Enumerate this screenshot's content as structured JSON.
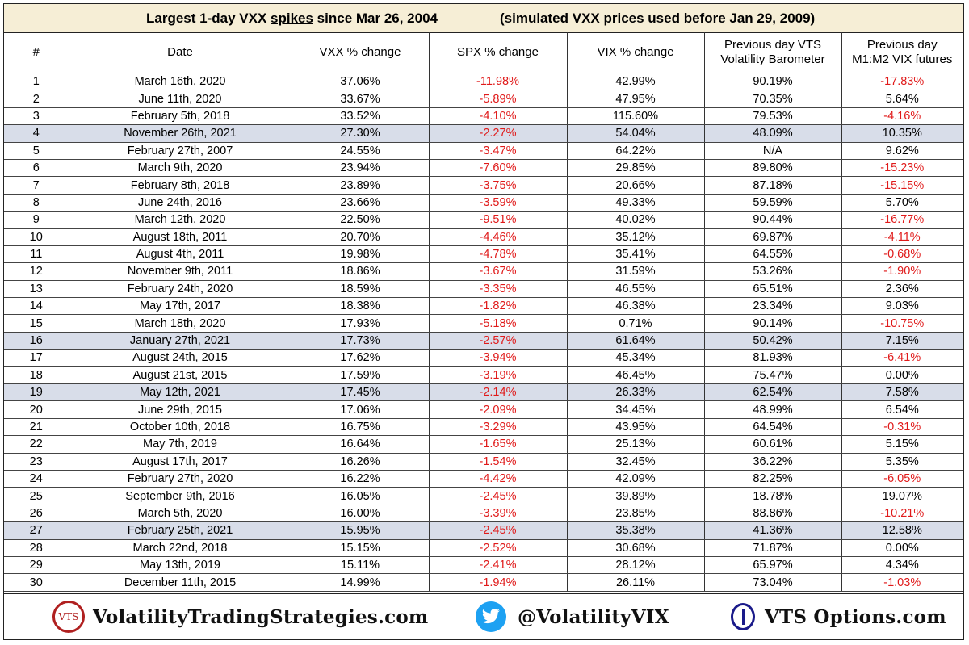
{
  "title": {
    "prefix": "Largest 1-day VXX ",
    "underlined": "spikes",
    "suffix": " since Mar 26, 2004",
    "note": "(simulated VXX prices used before Jan 29, 2009)"
  },
  "colors": {
    "negative": "#e01a1a",
    "highlight_row": "#d8dde9",
    "title_background": "#f6eed6",
    "twitter_blue": "#1da1f2"
  },
  "table": {
    "headers": [
      "#",
      "Date",
      "VXX % change",
      "SPX % change",
      "VIX % change",
      "Previous day VTS\nVolatility Barometer",
      "Previous day\nM1:M2 VIX futures"
    ],
    "highlighted_rows": [
      4,
      16,
      19,
      27
    ],
    "rows": [
      [
        "1",
        "March 16th, 2020",
        "37.06%",
        "-11.98%",
        "42.99%",
        "90.19%",
        "-17.83%"
      ],
      [
        "2",
        "June 11th, 2020",
        "33.67%",
        "-5.89%",
        "47.95%",
        "70.35%",
        "5.64%"
      ],
      [
        "3",
        "February 5th, 2018",
        "33.52%",
        "-4.10%",
        "115.60%",
        "79.53%",
        "-4.16%"
      ],
      [
        "4",
        "November 26th, 2021",
        "27.30%",
        "-2.27%",
        "54.04%",
        "48.09%",
        "10.35%"
      ],
      [
        "5",
        "February 27th, 2007",
        "24.55%",
        "-3.47%",
        "64.22%",
        "N/A",
        "9.62%"
      ],
      [
        "6",
        "March 9th, 2020",
        "23.94%",
        "-7.60%",
        "29.85%",
        "89.80%",
        "-15.23%"
      ],
      [
        "7",
        "February 8th, 2018",
        "23.89%",
        "-3.75%",
        "20.66%",
        "87.18%",
        "-15.15%"
      ],
      [
        "8",
        "June 24th, 2016",
        "23.66%",
        "-3.59%",
        "49.33%",
        "59.59%",
        "5.70%"
      ],
      [
        "9",
        "March 12th, 2020",
        "22.50%",
        "-9.51%",
        "40.02%",
        "90.44%",
        "-16.77%"
      ],
      [
        "10",
        "August 18th, 2011",
        "20.70%",
        "-4.46%",
        "35.12%",
        "69.87%",
        "-4.11%"
      ],
      [
        "11",
        "August 4th, 2011",
        "19.98%",
        "-4.78%",
        "35.41%",
        "64.55%",
        "-0.68%"
      ],
      [
        "12",
        "November 9th, 2011",
        "18.86%",
        "-3.67%",
        "31.59%",
        "53.26%",
        "-1.90%"
      ],
      [
        "13",
        "February 24th, 2020",
        "18.59%",
        "-3.35%",
        "46.55%",
        "65.51%",
        "2.36%"
      ],
      [
        "14",
        "May 17th, 2017",
        "18.38%",
        "-1.82%",
        "46.38%",
        "23.34%",
        "9.03%"
      ],
      [
        "15",
        "March 18th, 2020",
        "17.93%",
        "-5.18%",
        "0.71%",
        "90.14%",
        "-10.75%"
      ],
      [
        "16",
        "January 27th, 2021",
        "17.73%",
        "-2.57%",
        "61.64%",
        "50.42%",
        "7.15%"
      ],
      [
        "17",
        "August 24th, 2015",
        "17.62%",
        "-3.94%",
        "45.34%",
        "81.93%",
        "-6.41%"
      ],
      [
        "18",
        "August 21st, 2015",
        "17.59%",
        "-3.19%",
        "46.45%",
        "75.47%",
        "0.00%"
      ],
      [
        "19",
        "May 12th, 2021",
        "17.45%",
        "-2.14%",
        "26.33%",
        "62.54%",
        "7.58%"
      ],
      [
        "20",
        "June 29th, 2015",
        "17.06%",
        "-2.09%",
        "34.45%",
        "48.99%",
        "6.54%"
      ],
      [
        "21",
        "October 10th, 2018",
        "16.75%",
        "-3.29%",
        "43.95%",
        "64.54%",
        "-0.31%"
      ],
      [
        "22",
        "May 7th, 2019",
        "16.64%",
        "-1.65%",
        "25.13%",
        "60.61%",
        "5.15%"
      ],
      [
        "23",
        "August 17th, 2017",
        "16.26%",
        "-1.54%",
        "32.45%",
        "36.22%",
        "5.35%"
      ],
      [
        "24",
        "February 27th, 2020",
        "16.22%",
        "-4.42%",
        "42.09%",
        "82.25%",
        "-6.05%"
      ],
      [
        "25",
        "September 9th, 2016",
        "16.05%",
        "-2.45%",
        "39.89%",
        "18.78%",
        "19.07%"
      ],
      [
        "26",
        "March 5th, 2020",
        "16.00%",
        "-3.39%",
        "23.85%",
        "88.86%",
        "-10.21%"
      ],
      [
        "27",
        "February 25th, 2021",
        "15.95%",
        "-2.45%",
        "35.38%",
        "41.36%",
        "12.58%"
      ],
      [
        "28",
        "March 22nd, 2018",
        "15.15%",
        "-2.52%",
        "30.68%",
        "71.87%",
        "0.00%"
      ],
      [
        "29",
        "May 13th, 2019",
        "15.11%",
        "-2.41%",
        "28.12%",
        "65.97%",
        "4.34%"
      ],
      [
        "30",
        "December 11th, 2015",
        "14.99%",
        "-1.94%",
        "26.11%",
        "73.04%",
        "-1.03%"
      ]
    ]
  },
  "footer": {
    "vts_logo_text": "VTS",
    "vts_site": "VolatilityTradingStrategies.com",
    "twitter_handle": "@VolatilityVIX",
    "options_site": "VTS Options.com",
    "icons": [
      "vts-logo-icon",
      "twitter-bird-icon",
      "theta-icon"
    ]
  }
}
